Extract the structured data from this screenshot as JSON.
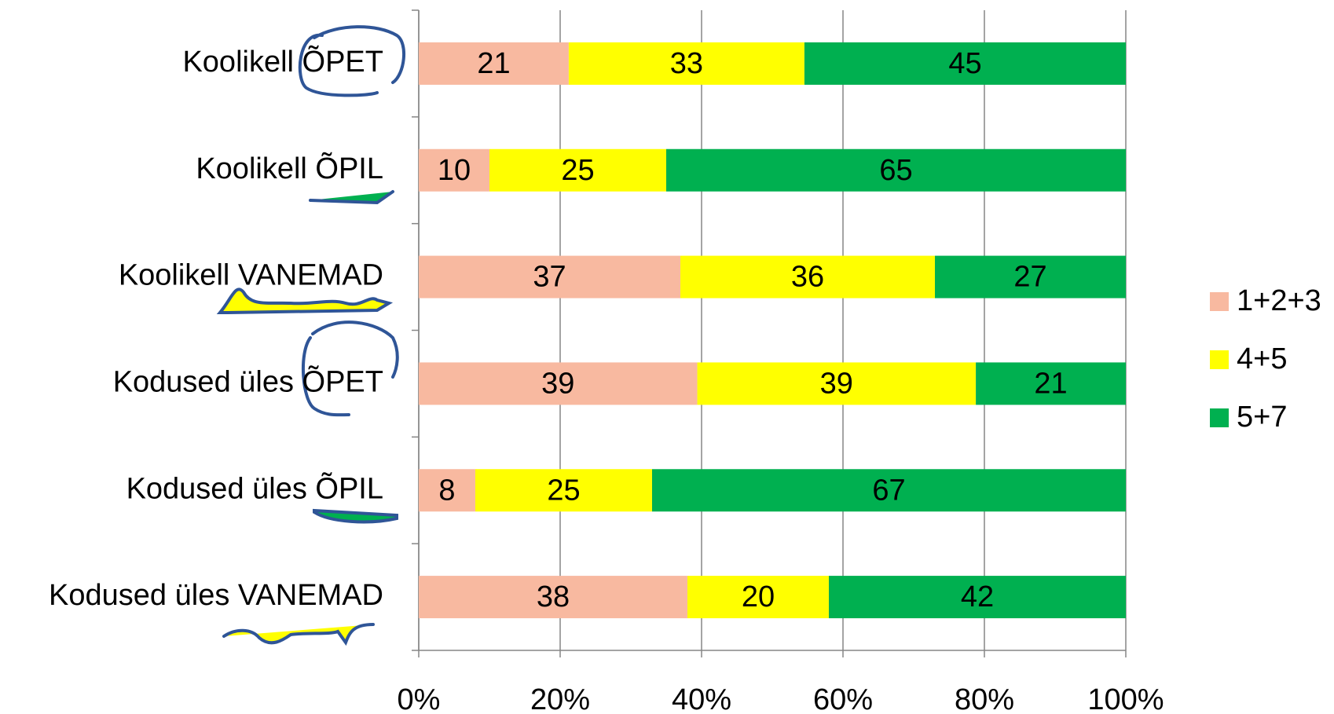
{
  "chart_data": {
    "type": "bar",
    "orientation": "horizontal",
    "stacking": "percent",
    "categories": [
      "Koolikell ÕPET",
      "Koolikell ÕPIL",
      "Koolikell VANEMAD",
      "Kodused üles ÕPET",
      "Kodused üles ÕPIL",
      "Kodused üles VANEMAD"
    ],
    "series": [
      {
        "name": "1+2+3",
        "color": "#f8b9a0",
        "values": [
          21,
          10,
          37,
          39,
          8,
          38
        ]
      },
      {
        "name": "4+5",
        "color": "#ffff00",
        "values": [
          33,
          25,
          36,
          39,
          25,
          20
        ]
      },
      {
        "name": "5+7",
        "color": "#00b050",
        "values": [
          45,
          65,
          27,
          21,
          67,
          42
        ]
      }
    ],
    "xlim": [
      0,
      100
    ],
    "xticks": [
      {
        "value": 0,
        "label": "0%"
      },
      {
        "value": 20,
        "label": "20%"
      },
      {
        "value": 40,
        "label": "40%"
      },
      {
        "value": 60,
        "label": "60%"
      },
      {
        "value": 80,
        "label": "80%"
      },
      {
        "value": 100,
        "label": "100%"
      }
    ],
    "grid": true,
    "legend": "right"
  }
}
